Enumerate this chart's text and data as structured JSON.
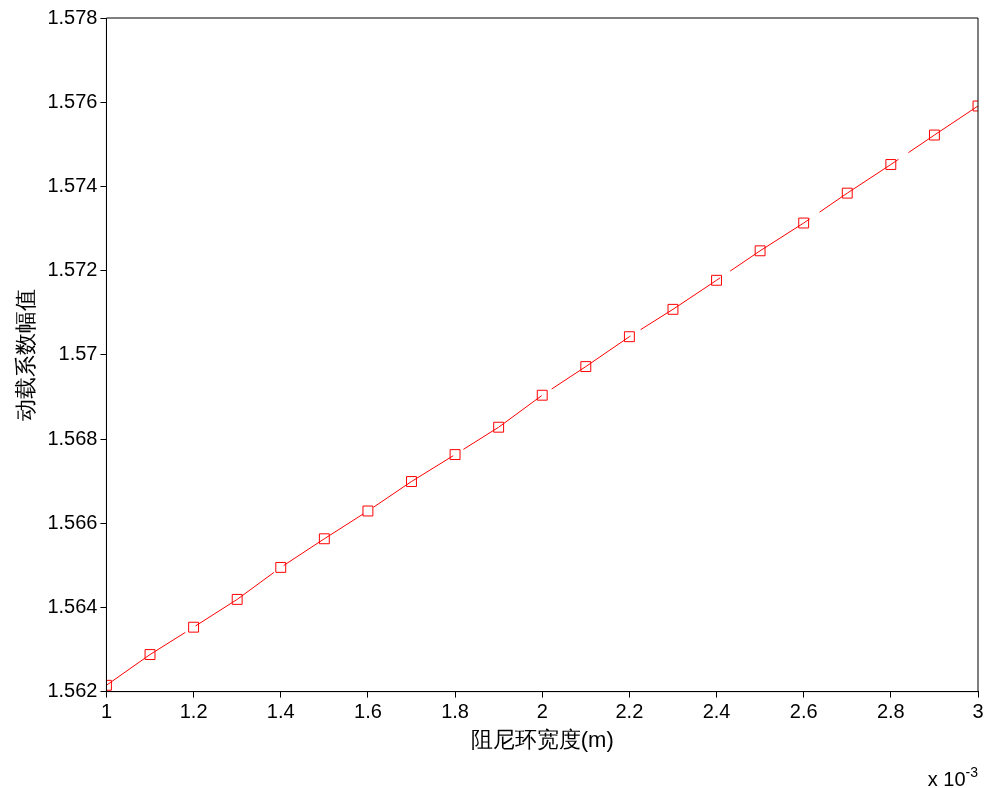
{
  "chart_data": {
    "type": "line",
    "xlabel": "阻尼环宽度(m)",
    "ylabel": "动载系数幅值",
    "x": [
      1,
      1.1,
      1.2,
      1.3,
      1.4,
      1.5,
      1.6,
      1.7,
      1.8,
      1.9,
      2,
      2.1,
      2.2,
      2.3,
      2.4,
      2.5,
      2.6,
      2.7,
      2.8,
      2.9,
      3
    ],
    "series": [
      {
        "color": "#ff0000",
        "values": [
          1.56215,
          1.56288,
          1.56353,
          1.56419,
          1.56495,
          1.56563,
          1.56629,
          1.56699,
          1.56763,
          1.56828,
          1.56904,
          1.56972,
          1.57043,
          1.57108,
          1.57177,
          1.57247,
          1.57313,
          1.57384,
          1.57452,
          1.57522,
          1.57591
        ]
      }
    ],
    "xlim": [
      1,
      3
    ],
    "xticks": [
      1,
      1.2,
      1.4,
      1.6,
      1.8,
      2,
      2.2,
      2.4,
      2.6,
      2.8,
      3
    ],
    "ylim": [
      1.562,
      1.578
    ],
    "yticks": [
      1.562,
      1.564,
      1.566,
      1.568,
      1.57,
      1.572,
      1.574,
      1.576,
      1.578
    ],
    "annotations": [
      "x 10$^{-3}$"
    ],
    "grid": false,
    "legend": false,
    "marker": "square",
    "line_style": "dashed"
  }
}
